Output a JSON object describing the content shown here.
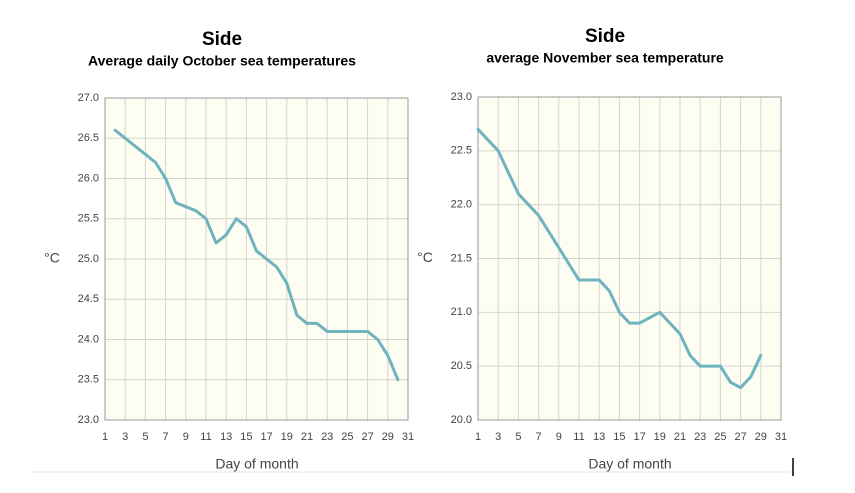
{
  "chart_data": [
    {
      "type": "line",
      "title": "Side",
      "subtitle": "Average daily October sea temperatures",
      "ylabel": "°C",
      "xlabel": "Day of month",
      "color": "#6fb3be",
      "grid": true,
      "x": [
        2,
        3,
        4,
        5,
        6,
        7,
        8,
        9,
        10,
        11,
        12,
        13,
        14,
        15,
        16,
        17,
        18,
        19,
        20,
        21,
        22,
        23,
        24,
        25,
        26,
        27,
        28,
        29,
        30
      ],
      "values": [
        26.6,
        26.5,
        26.4,
        26.3,
        26.2,
        26.0,
        25.7,
        25.65,
        25.6,
        25.5,
        25.2,
        25.3,
        25.5,
        25.4,
        25.1,
        25.0,
        24.9,
        24.7,
        24.3,
        24.2,
        24.2,
        24.1,
        24.1,
        24.1,
        24.1,
        24.1,
        24.0,
        23.8,
        23.5
      ],
      "xlim": [
        1,
        31
      ],
      "xticks": [
        1,
        3,
        5,
        7,
        9,
        11,
        13,
        15,
        17,
        19,
        21,
        23,
        25,
        27,
        29,
        31
      ],
      "ylim": [
        23,
        27
      ],
      "yticks": [
        {
          "value": 23,
          "label": "23.0"
        },
        23.5,
        {
          "value": 24,
          "label": "24.0"
        },
        24.5,
        {
          "value": 25,
          "label": "25.0"
        },
        25.5,
        {
          "value": 26,
          "label": "26.0"
        },
        26.5,
        {
          "value": 27,
          "label": "27.0"
        }
      ]
    },
    {
      "type": "line",
      "title": "Side",
      "subtitle": "average November sea temperature",
      "ylabel": "°C",
      "xlabel": "Day of month",
      "color": "#6fb3be",
      "grid": true,
      "x": [
        1,
        2,
        3,
        4,
        5,
        6,
        7,
        8,
        9,
        10,
        11,
        12,
        13,
        14,
        15,
        16,
        17,
        18,
        19,
        20,
        21,
        22,
        23,
        24,
        25,
        26,
        27,
        28,
        29
      ],
      "values": [
        22.7,
        22.6,
        22.5,
        22.3,
        22.1,
        22.0,
        21.9,
        21.75,
        21.6,
        21.45,
        21.3,
        21.3,
        21.3,
        21.2,
        21.0,
        20.9,
        20.9,
        20.95,
        21.0,
        20.9,
        20.8,
        20.6,
        20.5,
        20.5,
        20.5,
        20.35,
        20.3,
        20.4,
        20.6
      ],
      "xlim": [
        1,
        31
      ],
      "xticks": [
        1,
        3,
        5,
        7,
        9,
        11,
        13,
        15,
        17,
        19,
        21,
        23,
        25,
        27,
        29,
        31
      ],
      "ylim": [
        20,
        23
      ],
      "yticks": [
        {
          "value": 20,
          "label": "20.0"
        },
        20.5,
        {
          "value": 21,
          "label": "21.0"
        },
        21.5,
        {
          "value": 22,
          "label": "22.0"
        },
        22.5,
        {
          "value": 23,
          "label": "23.0"
        }
      ]
    }
  ]
}
